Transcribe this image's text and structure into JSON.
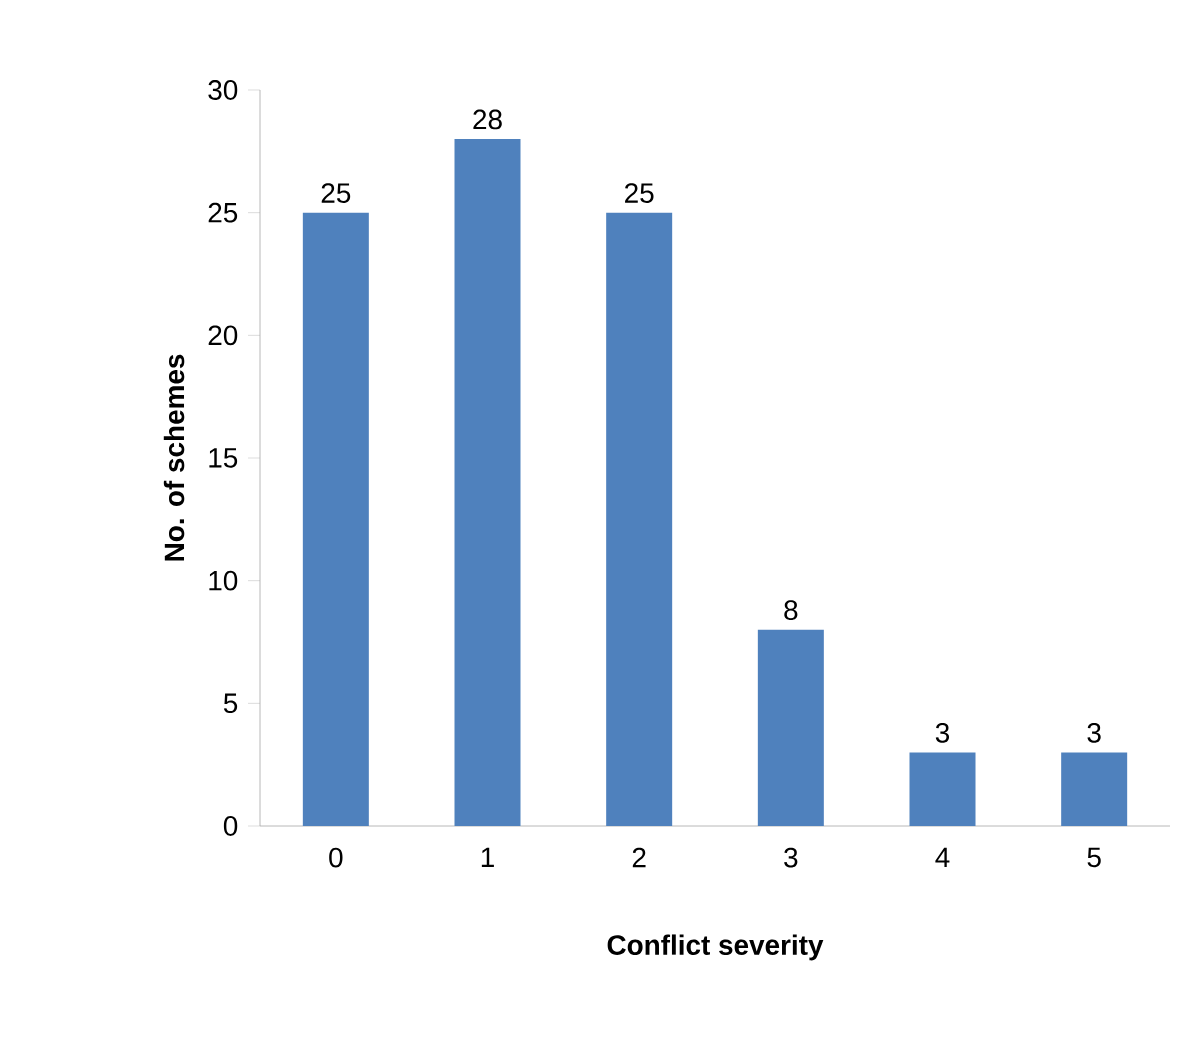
{
  "chart_data": {
    "type": "bar",
    "xlabel": "Conflict severity",
    "ylabel": "No. of schemes",
    "categories": [
      "0",
      "1",
      "2",
      "3",
      "4",
      "5"
    ],
    "values": [
      25,
      28,
      25,
      8,
      3,
      3
    ],
    "color": "#4f81bd",
    "ylim": [
      0,
      30
    ],
    "yticks": [
      0,
      5,
      10,
      15,
      20,
      25,
      30
    ],
    "data_labels": true,
    "grid": false
  }
}
